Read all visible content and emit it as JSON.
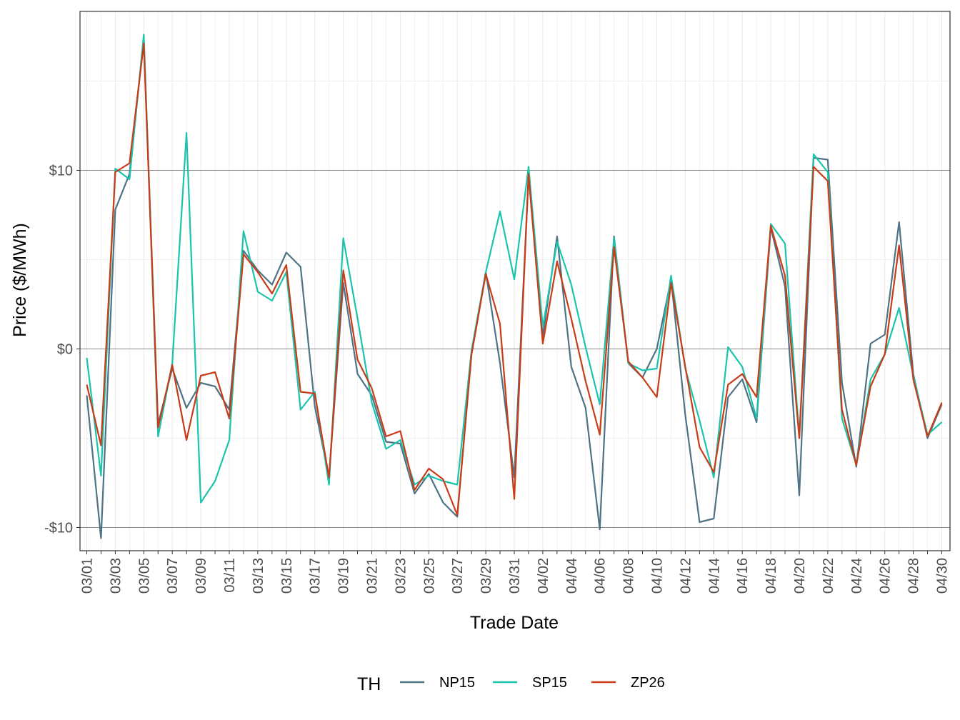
{
  "chart_data": {
    "type": "line",
    "title": "",
    "xlabel": "Trade Date",
    "ylabel": "Price ($/MWh)",
    "ylim": [
      -11.3,
      18.9
    ],
    "y_ticks": [
      -10,
      0,
      10
    ],
    "y_tick_labels": [
      "-$10",
      "$0",
      "$10"
    ],
    "x_tick_labels": [
      "03/01",
      "03/03",
      "03/05",
      "03/07",
      "03/09",
      "03/11",
      "03/13",
      "03/15",
      "03/17",
      "03/19",
      "03/21",
      "03/23",
      "03/25",
      "03/27",
      "03/29",
      "03/31",
      "04/02",
      "04/04",
      "04/06",
      "04/08",
      "04/10",
      "04/12",
      "04/14",
      "04/16",
      "04/18",
      "04/20",
      "04/22",
      "04/24",
      "04/26",
      "04/28",
      "04/30"
    ],
    "x": [
      "03/01",
      "03/02",
      "03/03",
      "03/04",
      "03/05",
      "03/06",
      "03/07",
      "03/08",
      "03/09",
      "03/10",
      "03/11",
      "03/12",
      "03/13",
      "03/14",
      "03/15",
      "03/16",
      "03/17",
      "03/18",
      "03/19",
      "03/20",
      "03/21",
      "03/22",
      "03/23",
      "03/24",
      "03/25",
      "03/26",
      "03/27",
      "03/28",
      "03/29",
      "03/30",
      "03/31",
      "04/01",
      "04/02",
      "04/03",
      "04/04",
      "04/05",
      "04/06",
      "04/07",
      "04/08",
      "04/09",
      "04/10",
      "04/11",
      "04/12",
      "04/13",
      "04/14",
      "04/15",
      "04/16",
      "04/17",
      "04/18",
      "04/19",
      "04/20",
      "04/21",
      "04/22",
      "04/23",
      "04/24",
      "04/25",
      "04/26",
      "04/27",
      "04/28",
      "04/29",
      "04/30"
    ],
    "grid": true,
    "legend_position": "bottom",
    "legend_title": "TH",
    "series": [
      {
        "name": "NP15",
        "color": "#4e7385",
        "values": [
          -2.6,
          -10.6,
          7.8,
          9.8,
          17.4,
          -4.2,
          -1.1,
          -3.3,
          -1.9,
          -2.1,
          -3.4,
          5.5,
          4.4,
          3.6,
          5.4,
          4.6,
          -3.2,
          -7.2,
          3.7,
          -1.4,
          -2.6,
          -5.2,
          -5.3,
          -8.1,
          -7.0,
          -8.6,
          -9.4,
          -0.3,
          4.3,
          -0.8,
          -7.2,
          9.7,
          0.7,
          6.3,
          -1.0,
          -3.3,
          -10.1,
          6.3,
          -0.8,
          -1.6,
          0.0,
          3.9,
          -3.7,
          -9.7,
          -9.5,
          -2.7,
          -1.7,
          -4.1,
          6.8,
          3.5,
          -8.2,
          10.7,
          10.6,
          -1.9,
          -6.6,
          0.3,
          0.8,
          7.1,
          -1.4,
          -5.0,
          -3.1
        ]
      },
      {
        "name": "SP15",
        "color": "#1ac4ad",
        "values": [
          -0.5,
          -7.1,
          10.1,
          9.5,
          17.6,
          -4.9,
          -0.8,
          12.1,
          -8.6,
          -7.4,
          -5.1,
          6.6,
          3.2,
          2.7,
          4.3,
          -3.4,
          -2.4,
          -7.6,
          6.2,
          1.7,
          -3.0,
          -5.6,
          -5.1,
          -7.6,
          -7.1,
          -7.4,
          -7.6,
          -0.1,
          4.3,
          7.7,
          3.9,
          10.2,
          1.2,
          6.0,
          3.6,
          0.1,
          -3.1,
          6.2,
          -0.8,
          -1.2,
          -1.1,
          4.1,
          -1.1,
          -4.0,
          -7.2,
          0.1,
          -1.0,
          -3.9,
          7.0,
          5.9,
          -4.9,
          10.9,
          9.9,
          -3.9,
          -6.5,
          -1.7,
          -0.3,
          2.3,
          -1.5,
          -4.8,
          -4.1
        ]
      },
      {
        "name": "ZP26",
        "color": "#c93c18",
        "values": [
          -2.0,
          -5.4,
          9.9,
          10.4,
          17.1,
          -4.4,
          -0.9,
          -5.1,
          -1.5,
          -1.3,
          -3.9,
          5.3,
          4.3,
          3.1,
          4.7,
          -2.4,
          -2.5,
          -7.2,
          4.4,
          -0.6,
          -2.2,
          -4.9,
          -4.6,
          -7.9,
          -6.7,
          -7.3,
          -9.3,
          -0.3,
          4.2,
          1.4,
          -8.4,
          9.8,
          0.3,
          4.9,
          1.7,
          -1.8,
          -4.8,
          5.7,
          -0.7,
          -1.6,
          -2.7,
          3.7,
          -1.0,
          -5.5,
          -6.9,
          -2.0,
          -1.4,
          -2.7,
          6.9,
          4.1,
          -5.0,
          10.2,
          9.4,
          -3.4,
          -6.5,
          -2.1,
          -0.3,
          5.8,
          -1.7,
          -4.9,
          -3.0
        ]
      }
    ]
  }
}
